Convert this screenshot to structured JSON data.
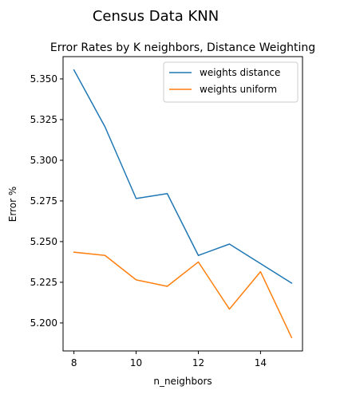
{
  "suptitle": "Census Data KNN",
  "chart_data": {
    "type": "line",
    "title": "Error Rates by K neighbors, Distance Weighting",
    "xlabel": "n_neighbors",
    "ylabel": "Error %",
    "x": [
      8,
      9,
      10,
      11,
      12,
      13,
      14,
      15
    ],
    "xlim": [
      7.65,
      15.35
    ],
    "ylim": [
      5.1828,
      5.3637
    ],
    "xticks": [
      8,
      10,
      12,
      14
    ],
    "yticks": [
      5.2,
      5.225,
      5.25,
      5.275,
      5.3,
      5.325,
      5.35
    ],
    "xtick_labels": [
      "8",
      "10",
      "12",
      "14"
    ],
    "ytick_labels": [
      "5.200",
      "5.225",
      "5.250",
      "5.275",
      "5.300",
      "5.325",
      "5.350"
    ],
    "grid": false,
    "legend_position": "top-right",
    "series": [
      {
        "name": "weights distance",
        "color": "#1f77b4",
        "values": [
          5.3555,
          5.3205,
          5.2765,
          5.2795,
          5.2415,
          5.2485,
          5.2365,
          5.2245
        ]
      },
      {
        "name": "weights uniform",
        "color": "#ff7f0e",
        "values": [
          5.2435,
          5.2415,
          5.2265,
          5.2225,
          5.2375,
          5.2085,
          5.2315,
          5.191
        ]
      }
    ]
  }
}
